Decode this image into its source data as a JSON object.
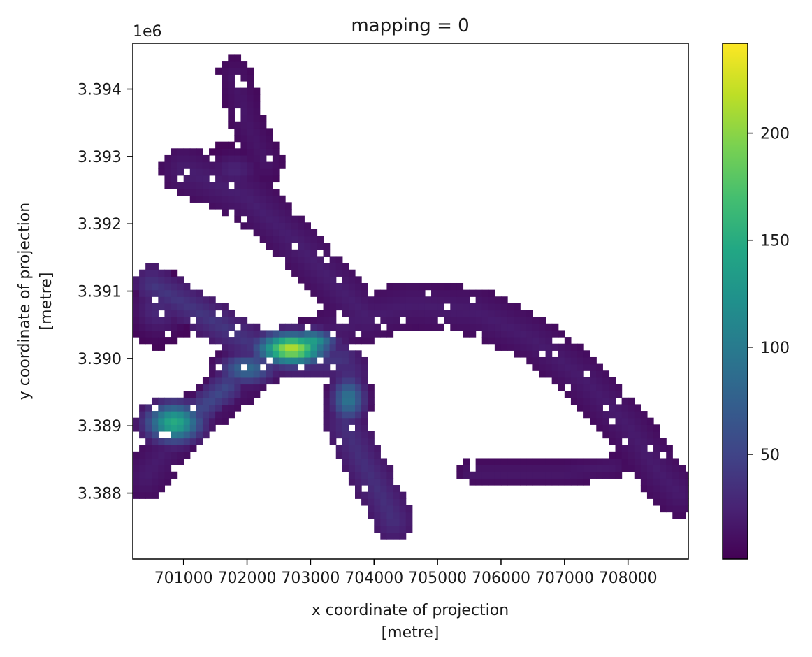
{
  "chart_data": {
    "type": "heatmap",
    "title": "mapping = 0",
    "xlabel": "x coordinate of projection",
    "xlabel_unit": "[metre]",
    "ylabel": "y coordinate of projection",
    "ylabel_unit": "[metre]",
    "y_offset_label": "1e6",
    "xlim": [
      700200,
      708950
    ],
    "ylim": [
      3.38702,
      3.39468
    ],
    "x_ticks": [
      701000,
      702000,
      703000,
      704000,
      705000,
      706000,
      707000,
      708000
    ],
    "x_tick_labels": [
      "701000",
      "702000",
      "703000",
      "704000",
      "705000",
      "706000",
      "707000",
      "708000"
    ],
    "y_ticks": [
      3.388,
      3.389,
      3.39,
      3.391,
      3.392,
      3.393,
      3.394
    ],
    "y_tick_labels": [
      "3.388",
      "3.389",
      "3.390",
      "3.391",
      "3.392",
      "3.393",
      "3.394"
    ],
    "colorbar": {
      "colormap": "viridis",
      "range": [
        1,
        242
      ],
      "ticks": [
        50,
        100,
        150,
        200
      ],
      "tick_labels": [
        "50",
        "100",
        "150",
        "200"
      ]
    },
    "grid": false,
    "cell_size_m": 100,
    "features": [
      {
        "kind": "ridge",
        "path": [
          [
            700400,
            3.38825
          ],
          [
            700900,
            3.3889
          ],
          [
            701500,
            3.3894
          ],
          [
            702200,
            3.3899
          ],
          [
            702600,
            3.3901
          ],
          [
            703100,
            3.3903
          ],
          [
            703800,
            3.3906
          ],
          [
            704600,
            3.3908
          ],
          [
            705600,
            3.3907
          ],
          [
            706500,
            3.3903
          ],
          [
            707300,
            3.3897
          ],
          [
            708000,
            3.389
          ],
          [
            708500,
            3.3883
          ],
          [
            708800,
            3.388
          ]
        ],
        "width": 700,
        "value": 20
      },
      {
        "kind": "ridge",
        "path": [
          [
            700500,
            3.3911
          ],
          [
            701400,
            3.3906
          ],
          [
            702100,
            3.3902
          ],
          [
            702700,
            3.39
          ],
          [
            703500,
            3.39
          ]
        ],
        "width": 560,
        "value": 40
      },
      {
        "kind": "ridge",
        "path": [
          [
            701000,
            3.3928
          ],
          [
            702000,
            3.3924
          ],
          [
            702800,
            3.3917
          ],
          [
            703400,
            3.3911
          ],
          [
            703900,
            3.3906
          ]
        ],
        "width": 720,
        "value": 22
      },
      {
        "kind": "ridge",
        "path": [
          [
            701800,
            3.3942
          ],
          [
            702000,
            3.3935
          ],
          [
            702300,
            3.3929
          ]
        ],
        "width": 550,
        "value": 16
      },
      {
        "kind": "ridge",
        "path": [
          [
            703600,
            3.3898
          ],
          [
            703550,
            3.389
          ],
          [
            703800,
            3.3885
          ],
          [
            704100,
            3.388
          ],
          [
            704300,
            3.3876
          ]
        ],
        "width": 650,
        "value": 35
      },
      {
        "kind": "ridge",
        "path": [
          [
            705500,
            3.3883
          ],
          [
            706200,
            3.3883
          ],
          [
            707000,
            3.3883
          ],
          [
            707800,
            3.3884
          ]
        ],
        "width": 360,
        "value": 18
      },
      {
        "kind": "ridge",
        "path": [
          [
            701200,
            3.3892
          ],
          [
            701700,
            3.3896
          ]
        ],
        "width": 450,
        "value": 55
      },
      {
        "kind": "blob",
        "center": [
          702700,
          3.39015
        ],
        "radius": [
          620,
          0.00028
        ],
        "value": 215
      },
      {
        "kind": "blob",
        "center": [
          703000,
          3.39025
        ],
        "radius": [
          450,
          0.00022
        ],
        "value": 140
      },
      {
        "kind": "blob",
        "center": [
          700850,
          3.38905
        ],
        "radius": [
          520,
          0.00035
        ],
        "value": 150
      },
      {
        "kind": "blob",
        "center": [
          702000,
          3.38985
        ],
        "radius": [
          520,
          0.00028
        ],
        "value": 85
      },
      {
        "kind": "blob",
        "center": [
          703600,
          3.3894
        ],
        "radius": [
          320,
          0.0004
        ],
        "value": 95
      },
      {
        "kind": "blob",
        "center": [
          701800,
          3.3928
        ],
        "radius": [
          500,
          0.00035
        ],
        "value": 25
      },
      {
        "kind": "blob",
        "center": [
          700600,
          3.39075
        ],
        "radius": [
          500,
          0.0005
        ],
        "value": 30
      }
    ]
  }
}
